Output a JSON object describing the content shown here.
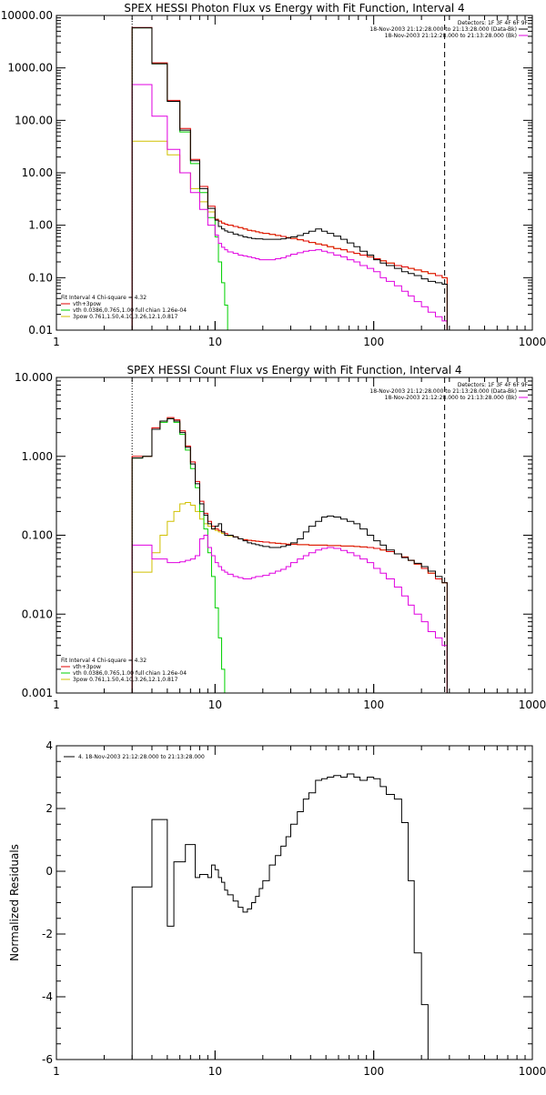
{
  "chart_data": [
    {
      "type": "line",
      "title": "SPEX HESSI Photon Flux vs Energy with Fit Function, Interval 4",
      "xscale": "log",
      "yscale": "log",
      "xlim": [
        1,
        1000
      ],
      "ylim": [
        0.01,
        10000
      ],
      "xticks": [
        1,
        10,
        100,
        1000
      ],
      "xtick_labels": [
        "1",
        "10",
        "100",
        "1000"
      ],
      "yticks": [
        0.01,
        0.1,
        1,
        10,
        100,
        1000,
        10000
      ],
      "ytick_labels": [
        "0.01",
        "0.10",
        "1.00",
        "10.00",
        "100.00",
        "1000.00",
        "10000.00"
      ],
      "vlines": [
        {
          "x": 3,
          "style": "dotted",
          "color": "#000000"
        },
        {
          "x": 280,
          "style": "dashed",
          "color": "#000000"
        }
      ],
      "legend_top": [
        "Detectors: 1F 3F 4F 6F 9F",
        "18-Nov-2003 21:12:28.000 to 21:13:28.000 (Data-Bk)",
        "18-Nov-2003 21:12:28.000 to 21:13:28.000 (Bk)"
      ],
      "legend_bottom": [
        "Fit Interval  4    Chi-square = 4.32",
        "vth+3pow",
        "vth 0.0386,0.765,1.00  full chian 1.26e-04",
        "3pow 0.761,1.50,4.10,3.26,12.1,0.817"
      ],
      "colors": {
        "data": "#000000",
        "bk": "#e000e0",
        "total": "#e00000",
        "vth": "#00d000",
        "pow": "#d0c000"
      },
      "x": [
        3,
        3.5,
        4,
        4.5,
        5,
        5.5,
        6,
        6.5,
        7,
        7.5,
        8,
        8.5,
        9,
        9.5,
        10,
        10.5,
        11,
        11.5,
        12,
        13,
        14,
        15,
        16,
        17,
        18,
        19,
        20,
        22,
        24,
        26,
        28,
        30,
        33,
        36,
        39,
        43,
        47,
        51,
        56,
        62,
        68,
        75,
        82,
        91,
        100,
        110,
        120,
        135,
        150,
        165,
        180,
        200,
        220,
        245,
        270,
        280
      ],
      "series": [
        {
          "name": "Data-Bk",
          "key": "data",
          "values": [
            5800,
            5800,
            1200,
            1200,
            230,
            230,
            65,
            65,
            17,
            17,
            5,
            5,
            2.1,
            2.1,
            1.25,
            0.95,
            0.85,
            0.78,
            0.74,
            0.68,
            0.64,
            0.6,
            0.58,
            0.56,
            0.55,
            0.55,
            0.54,
            0.54,
            0.54,
            0.55,
            0.57,
            0.6,
            0.64,
            0.7,
            0.77,
            0.85,
            0.77,
            0.7,
            0.62,
            0.54,
            0.46,
            0.39,
            0.32,
            0.27,
            0.22,
            0.19,
            0.17,
            0.15,
            0.13,
            0.12,
            0.11,
            0.095,
            0.085,
            0.08,
            0.075,
            0.075
          ]
        },
        {
          "name": "Bk",
          "key": "bk",
          "values": [
            480,
            480,
            120,
            120,
            28,
            28,
            10,
            10,
            4.2,
            4.2,
            2.0,
            2.0,
            1.0,
            1.0,
            0.65,
            0.45,
            0.38,
            0.34,
            0.31,
            0.29,
            0.27,
            0.26,
            0.25,
            0.24,
            0.23,
            0.22,
            0.22,
            0.22,
            0.23,
            0.24,
            0.26,
            0.28,
            0.3,
            0.32,
            0.33,
            0.34,
            0.32,
            0.3,
            0.27,
            0.25,
            0.22,
            0.2,
            0.17,
            0.15,
            0.13,
            0.1,
            0.085,
            0.07,
            0.055,
            0.045,
            0.035,
            0.028,
            0.022,
            0.018,
            0.015,
            0.015
          ]
        },
        {
          "name": "vth+3pow",
          "key": "total",
          "values": [
            5900,
            5900,
            1250,
            1250,
            240,
            240,
            70,
            70,
            18,
            18,
            5.5,
            5.5,
            2.3,
            2.3,
            1.3,
            1.2,
            1.1,
            1.05,
            1.0,
            0.95,
            0.9,
            0.85,
            0.8,
            0.78,
            0.75,
            0.72,
            0.7,
            0.67,
            0.64,
            0.61,
            0.58,
            0.56,
            0.53,
            0.5,
            0.47,
            0.44,
            0.42,
            0.39,
            0.36,
            0.34,
            0.31,
            0.29,
            0.27,
            0.25,
            0.23,
            0.21,
            0.19,
            0.17,
            0.16,
            0.15,
            0.14,
            0.13,
            0.12,
            0.11,
            0.1,
            0.1
          ]
        },
        {
          "name": "vth",
          "key": "vth",
          "values": [
            5800,
            5800,
            1200,
            1200,
            230,
            230,
            60,
            60,
            15,
            15,
            4.2,
            4.2,
            1.4,
            1.4,
            0.6,
            0.2,
            0.08,
            0.03,
            0.01,
            0.01,
            0.01,
            0.01,
            0.01,
            0.01,
            0.01,
            0.01,
            0.01,
            0.01,
            0.01,
            0.01,
            0.01,
            0.01,
            0.01,
            0.01,
            0.01,
            0.01,
            0.01,
            0.01,
            0.01,
            0.01,
            0.01,
            0.01,
            0.01,
            0.01,
            0.01,
            0.01,
            0.01,
            0.01,
            0.01,
            0.01,
            0.01,
            0.01,
            0.01,
            0.01,
            0.01,
            0.01
          ]
        },
        {
          "name": "3pow",
          "key": "pow",
          "values": [
            40,
            40,
            40,
            40,
            22,
            22,
            10,
            10,
            5,
            5,
            2.8,
            2.8,
            1.8,
            1.8,
            1.3,
            1.2,
            1.1,
            1.05,
            1.0,
            0.95,
            0.9,
            0.85,
            0.8,
            0.78,
            0.75,
            0.72,
            0.7,
            0.67,
            0.64,
            0.61,
            0.58,
            0.56,
            0.53,
            0.5,
            0.47,
            0.44,
            0.42,
            0.39,
            0.36,
            0.34,
            0.31,
            0.29,
            0.27,
            0.25,
            0.23,
            0.21,
            0.19,
            0.17,
            0.16,
            0.15,
            0.14,
            0.13,
            0.12,
            0.11,
            0.1,
            0.1
          ]
        }
      ]
    },
    {
      "type": "line",
      "title": "SPEX HESSI Count Flux vs Energy with Fit Function, Interval 4",
      "xscale": "log",
      "yscale": "log",
      "xlim": [
        1,
        1000
      ],
      "ylim": [
        0.001,
        10
      ],
      "xticks": [
        1,
        10,
        100,
        1000
      ],
      "xtick_labels": [
        "1",
        "10",
        "100",
        "1000"
      ],
      "yticks": [
        0.001,
        0.01,
        0.1,
        1,
        10
      ],
      "ytick_labels": [
        "0.001",
        "0.010",
        "0.100",
        "1.000",
        "10.000"
      ],
      "vlines": [
        {
          "x": 3,
          "style": "dotted",
          "color": "#000000"
        },
        {
          "x": 280,
          "style": "dashed",
          "color": "#000000"
        }
      ],
      "legend_top": [
        "Detectors: 1F 3F 4F 6F 9F",
        "18-Nov-2003 21:12:28.000 to 21:13:28.000 (Data-Bk)",
        "18-Nov-2003 21:12:28.000 to 21:13:28.000 (Bk)"
      ],
      "legend_bottom": [
        "Fit Interval  4    Chi-square = 4.32",
        "vth+3pow",
        "vth 0.0386,0.765,1.00  full chian 1.26e-04",
        "3pow 0.761,1.50,4.10,3.26,12.1,0.817"
      ],
      "colors": {
        "data": "#000000",
        "bk": "#e000e0",
        "total": "#e00000",
        "vth": "#00d000",
        "pow": "#d0c000"
      },
      "x": [
        3,
        3.5,
        4,
        4.5,
        5,
        5.5,
        6,
        6.5,
        7,
        7.5,
        8,
        8.5,
        9,
        9.5,
        10,
        10.5,
        11,
        11.5,
        12,
        13,
        14,
        15,
        16,
        17,
        18,
        19,
        20,
        22,
        24,
        26,
        28,
        30,
        33,
        36,
        39,
        43,
        47,
        51,
        56,
        62,
        68,
        75,
        82,
        91,
        100,
        110,
        120,
        135,
        150,
        165,
        180,
        200,
        220,
        245,
        270,
        280
      ],
      "series": [
        {
          "name": "Data-Bk",
          "key": "data",
          "values": [
            0.95,
            1.0,
            2.2,
            2.8,
            3.0,
            2.8,
            2.0,
            1.3,
            0.8,
            0.45,
            0.25,
            0.18,
            0.14,
            0.12,
            0.13,
            0.14,
            0.11,
            0.1,
            0.1,
            0.095,
            0.09,
            0.085,
            0.08,
            0.078,
            0.076,
            0.074,
            0.072,
            0.07,
            0.07,
            0.072,
            0.075,
            0.08,
            0.09,
            0.11,
            0.13,
            0.15,
            0.17,
            0.175,
            0.17,
            0.16,
            0.15,
            0.14,
            0.12,
            0.1,
            0.085,
            0.075,
            0.065,
            0.058,
            0.052,
            0.048,
            0.044,
            0.04,
            0.035,
            0.03,
            0.025,
            0.025
          ]
        },
        {
          "name": "Bk",
          "key": "bk",
          "values": [
            0.075,
            0.075,
            0.05,
            0.05,
            0.045,
            0.045,
            0.046,
            0.048,
            0.05,
            0.055,
            0.09,
            0.1,
            0.07,
            0.055,
            0.045,
            0.04,
            0.036,
            0.034,
            0.032,
            0.03,
            0.029,
            0.028,
            0.028,
            0.029,
            0.03,
            0.03,
            0.031,
            0.033,
            0.035,
            0.037,
            0.04,
            0.045,
            0.05,
            0.055,
            0.06,
            0.065,
            0.068,
            0.07,
            0.068,
            0.064,
            0.06,
            0.055,
            0.05,
            0.045,
            0.038,
            0.033,
            0.028,
            0.022,
            0.017,
            0.013,
            0.01,
            0.008,
            0.006,
            0.005,
            0.004,
            0.004
          ]
        },
        {
          "name": "vth+3pow",
          "key": "total",
          "values": [
            1.0,
            1.0,
            2.3,
            2.8,
            3.1,
            2.9,
            2.1,
            1.35,
            0.85,
            0.48,
            0.27,
            0.19,
            0.15,
            0.13,
            0.12,
            0.115,
            0.11,
            0.105,
            0.1,
            0.095,
            0.09,
            0.088,
            0.086,
            0.085,
            0.084,
            0.083,
            0.082,
            0.08,
            0.079,
            0.078,
            0.077,
            0.077,
            0.076,
            0.076,
            0.075,
            0.075,
            0.075,
            0.074,
            0.074,
            0.073,
            0.073,
            0.072,
            0.071,
            0.07,
            0.068,
            0.065,
            0.062,
            0.058,
            0.053,
            0.048,
            0.043,
            0.038,
            0.033,
            0.028,
            0.025,
            0.025
          ]
        },
        {
          "name": "vth",
          "key": "vth",
          "values": [
            0.95,
            1.0,
            2.2,
            2.7,
            3.0,
            2.7,
            1.9,
            1.2,
            0.7,
            0.4,
            0.2,
            0.12,
            0.06,
            0.03,
            0.012,
            0.005,
            0.002,
            0.001,
            0.001,
            0.001,
            0.001,
            0.001,
            0.001,
            0.001,
            0.001,
            0.001,
            0.001,
            0.001,
            0.001,
            0.001,
            0.001,
            0.001,
            0.001,
            0.001,
            0.001,
            0.001,
            0.001,
            0.001,
            0.001,
            0.001,
            0.001,
            0.001,
            0.001,
            0.001,
            0.001,
            0.001,
            0.001,
            0.001,
            0.001,
            0.001,
            0.001,
            0.001,
            0.001,
            0.001,
            0.001,
            0.001
          ]
        },
        {
          "name": "3pow",
          "key": "pow",
          "values": [
            0.034,
            0.034,
            0.06,
            0.1,
            0.15,
            0.2,
            0.25,
            0.26,
            0.24,
            0.2,
            0.16,
            0.14,
            0.13,
            0.12,
            0.115,
            0.11,
            0.105,
            0.1,
            0.098,
            0.095,
            0.09,
            0.088,
            0.086,
            0.085,
            0.084,
            0.083,
            0.082,
            0.08,
            0.079,
            0.078,
            0.077,
            0.077,
            0.076,
            0.076,
            0.075,
            0.075,
            0.075,
            0.074,
            0.074,
            0.073,
            0.073,
            0.072,
            0.071,
            0.07,
            0.068,
            0.065,
            0.062,
            0.058,
            0.053,
            0.048,
            0.043,
            0.038,
            0.033,
            0.028,
            0.025,
            0.025
          ]
        }
      ]
    },
    {
      "type": "line",
      "title": "",
      "xscale": "log",
      "yscale": "linear",
      "xlim": [
        1,
        1000
      ],
      "ylim": [
        -6,
        4
      ],
      "xticks": [
        1,
        10,
        100,
        1000
      ],
      "xtick_labels": [
        "1",
        "10",
        "100",
        "1000"
      ],
      "yticks": [
        -6,
        -4,
        -2,
        0,
        2,
        4
      ],
      "ytick_labels": [
        "-6",
        "-4",
        "-2",
        "0",
        "2",
        "4"
      ],
      "ylabel": "Normalized Residuals",
      "legend_top": [
        "4. 18-Nov-2003 21:12:28.000 to 21:13:28.000"
      ],
      "x": [
        3,
        4,
        4.5,
        5,
        5.5,
        6,
        6.5,
        7,
        7.5,
        8,
        8.5,
        9,
        9.5,
        10,
        10.5,
        11,
        11.5,
        12,
        13,
        14,
        15,
        16,
        17,
        18,
        19,
        20,
        22,
        24,
        26,
        28,
        30,
        33,
        36,
        39,
        43,
        47,
        51,
        56,
        62,
        68,
        75,
        82,
        91,
        100,
        110,
        120,
        135,
        150,
        165,
        180,
        200,
        220,
        245,
        270,
        280
      ],
      "series": [
        {
          "name": "4. 18-Nov-2003 21:12:28.000 to 21:13:28.000",
          "key": "data",
          "values": [
            -0.5,
            1.65,
            1.65,
            -1.75,
            0.3,
            0.3,
            0.85,
            0.85,
            -0.2,
            -0.1,
            -0.1,
            -0.2,
            0.2,
            0.05,
            -0.2,
            -0.35,
            -0.6,
            -0.75,
            -0.95,
            -1.15,
            -1.3,
            -1.2,
            -1.0,
            -0.8,
            -0.55,
            -0.3,
            0.2,
            0.5,
            0.8,
            1.1,
            1.5,
            1.9,
            2.3,
            2.5,
            2.9,
            2.95,
            3.0,
            3.05,
            3.0,
            3.1,
            3.0,
            2.9,
            3.0,
            2.95,
            2.7,
            2.45,
            2.3,
            1.55,
            -0.3,
            -2.6,
            -4.25,
            -6,
            -6,
            -6,
            -6
          ]
        }
      ]
    }
  ]
}
